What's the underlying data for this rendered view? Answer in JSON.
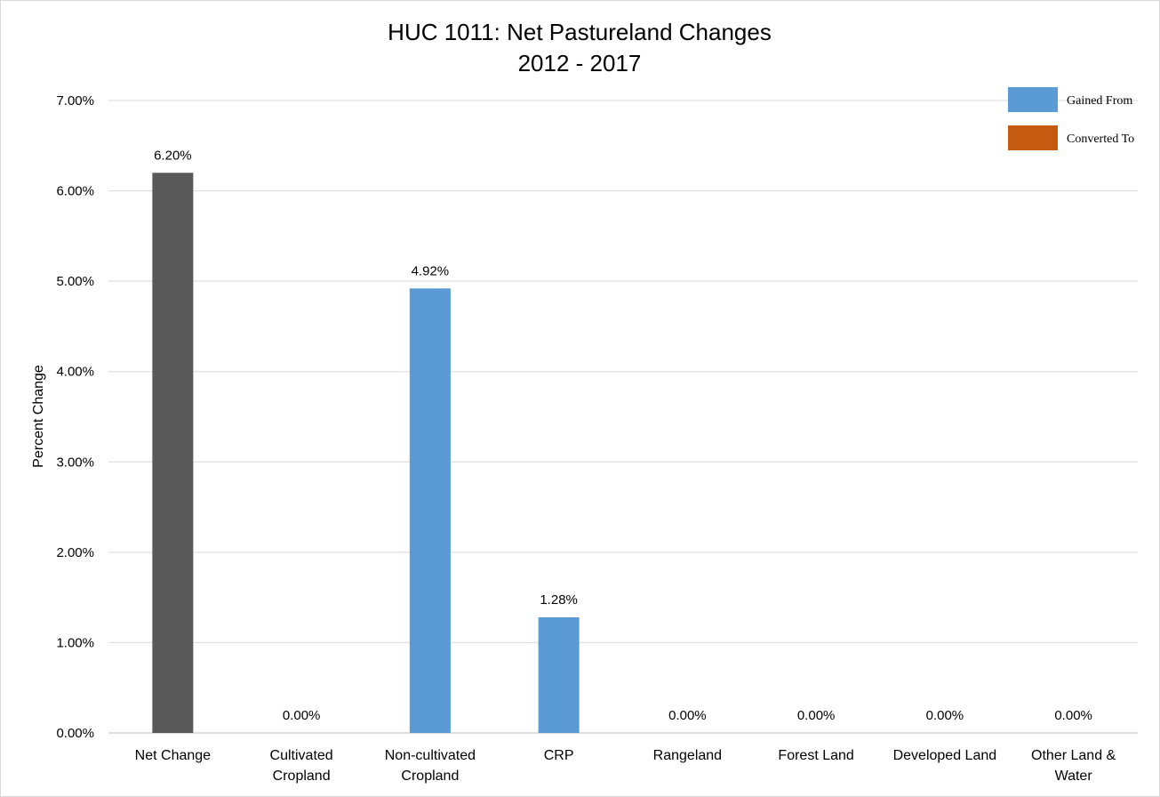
{
  "chart_data": {
    "type": "bar",
    "title": "HUC 1011: Net Pastureland Changes",
    "subtitle": "2012 - 2017",
    "ylabel": "Percent Change",
    "xlabel": "",
    "ylim": [
      0,
      7
    ],
    "yticks": [
      "0.00%",
      "1.00%",
      "2.00%",
      "3.00%",
      "4.00%",
      "5.00%",
      "6.00%",
      "7.00%"
    ],
    "grid": true,
    "legend_position": "top-right",
    "legend": [
      {
        "label": "Gained From",
        "color": "#5B9BD5"
      },
      {
        "label": "Converted To",
        "color": "#C55A11"
      }
    ],
    "categories": [
      [
        "Net Change"
      ],
      [
        "Cultivated",
        "Cropland"
      ],
      [
        "Non-cultivated",
        "Cropland"
      ],
      [
        "CRP"
      ],
      [
        "Rangeland"
      ],
      [
        "Forest Land"
      ],
      [
        "Developed Land"
      ],
      [
        "Other Land &",
        "Water"
      ]
    ],
    "values": [
      6.2,
      0.0,
      4.92,
      1.28,
      0.0,
      0.0,
      0.0,
      0.0
    ],
    "data_labels": [
      "6.20%",
      "0.00%",
      "4.92%",
      "1.28%",
      "0.00%",
      "0.00%",
      "0.00%",
      "0.00%"
    ],
    "bar_colors": [
      "#595959",
      "#5B9BD5",
      "#5B9BD5",
      "#5B9BD5",
      "#5B9BD5",
      "#5B9BD5",
      "#5B9BD5",
      "#5B9BD5"
    ]
  }
}
